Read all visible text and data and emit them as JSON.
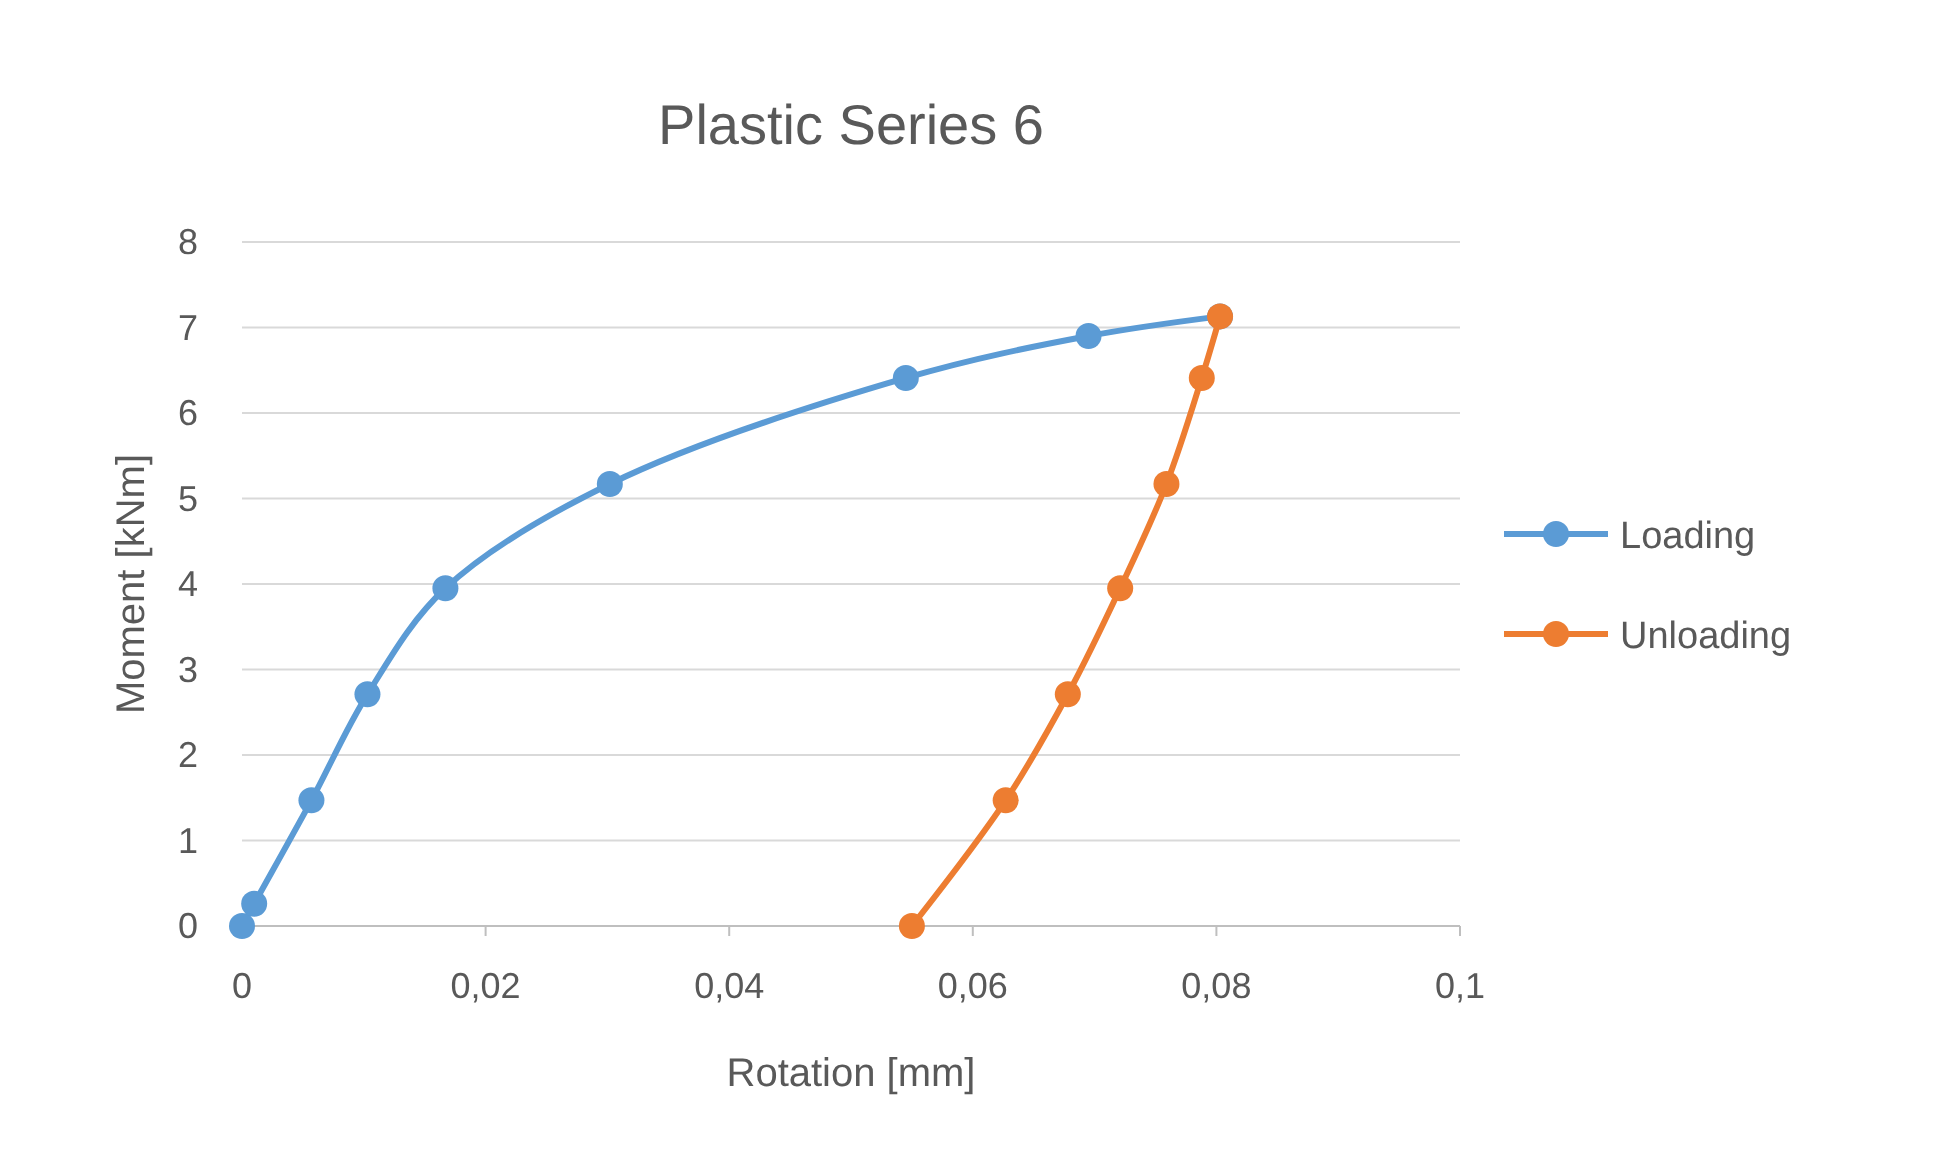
{
  "chart_data": {
    "type": "line",
    "title": "Plastic Series 6",
    "xlabel": "Rotation [mm]",
    "ylabel": "Moment [kNm]",
    "xlim": [
      0,
      0.1
    ],
    "xticks": [
      0,
      {
        "value": 0.02,
        "label": "0,02"
      },
      {
        "value": 0.04,
        "label": "0,04"
      },
      {
        "value": 0.06,
        "label": "0,06"
      },
      {
        "value": 0.08,
        "label": "0,08"
      },
      {
        "value": 0.1,
        "label": "0,1"
      }
    ],
    "ylim": [
      0,
      8
    ],
    "yticks": [
      0,
      1,
      2,
      3,
      4,
      5,
      6,
      7,
      8
    ],
    "grid": "y",
    "legend": "right",
    "marker": "circle",
    "series": [
      {
        "name": "Loading",
        "color": "#5b9bd5",
        "x": [
          0,
          0.001,
          0.0057,
          0.0103,
          0.0167,
          0.0302,
          0.0545,
          0.0695,
          0.0803
        ],
        "values": [
          0,
          0.26,
          1.47,
          2.71,
          3.95,
          5.17,
          6.41,
          6.9,
          7.13
        ]
      },
      {
        "name": "Unloading",
        "color": "#ed7d31",
        "x": [
          0.0803,
          0.0788,
          0.0759,
          0.0721,
          0.0678,
          0.0627,
          0.055
        ],
        "values": [
          7.13,
          6.41,
          5.17,
          3.95,
          2.71,
          1.47,
          0
        ]
      }
    ]
  }
}
